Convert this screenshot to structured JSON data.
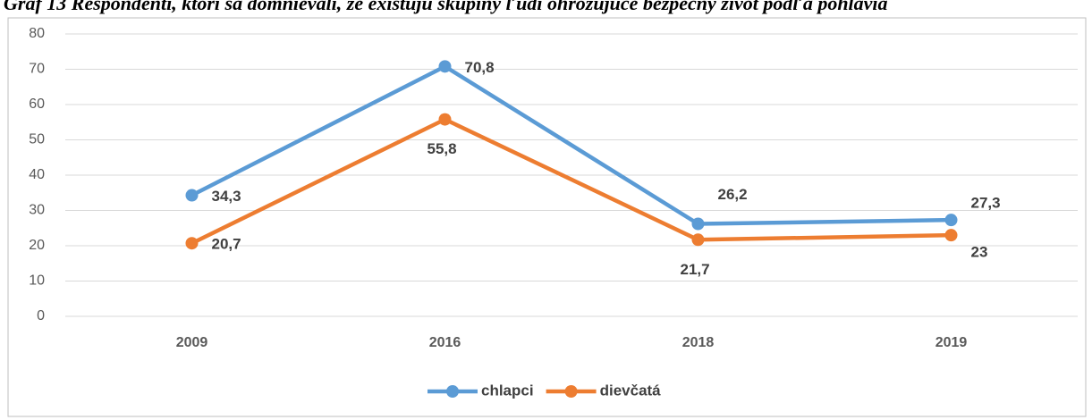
{
  "chart_data": {
    "type": "line",
    "title": "Graf 13 Respondenti, ktorí sa domnievali, že existujú skupiny ľudí ohrozujúce bezpečný život podľa pohlavia",
    "categories": [
      "2009",
      "2016",
      "2018",
      "2019"
    ],
    "series": [
      {
        "name": "chlapci",
        "color": "#5b9bd5",
        "values": [
          34.3,
          70.8,
          26.2,
          27.3
        ],
        "value_labels": [
          "34,3",
          "70,8",
          "26,2",
          "27,3"
        ]
      },
      {
        "name": "dievčatá",
        "color": "#ed7d31",
        "values": [
          20.7,
          55.8,
          21.7,
          23
        ],
        "value_labels": [
          "20,7",
          "55,8",
          "21,7",
          "23"
        ]
      }
    ],
    "ylim": [
      0,
      80
    ],
    "yticks": [
      0,
      10,
      20,
      30,
      40,
      50,
      60,
      70,
      80
    ],
    "grid": true,
    "legend": "bottom"
  }
}
